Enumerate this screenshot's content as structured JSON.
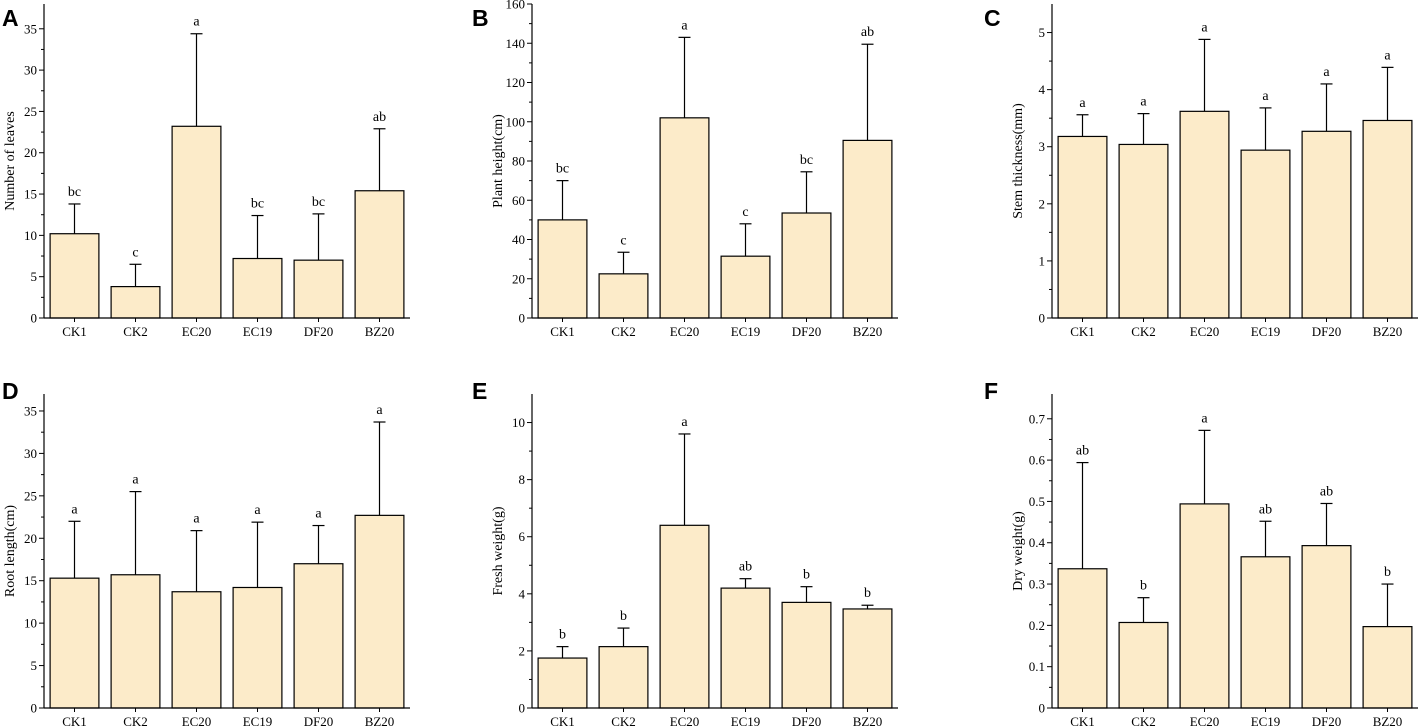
{
  "colors": {
    "bar_fill": "#fcebc9",
    "bar_stroke": "#000000",
    "axis": "#000000"
  },
  "chart_data": [
    {
      "panel": "A",
      "type": "bar",
      "categories": [
        "CK1",
        "CK2",
        "EC20",
        "EC19",
        "DF20",
        "BZ20"
      ],
      "values": [
        10.2,
        3.8,
        23.2,
        7.2,
        7.0,
        15.4
      ],
      "errors": [
        3.6,
        2.7,
        11.2,
        5.2,
        5.6,
        7.5
      ],
      "significance": [
        "bc",
        "c",
        "a",
        "bc",
        "bc",
        "ab"
      ],
      "ylabel": "Number of leaves",
      "ylim": [
        0,
        38
      ],
      "yticks": [
        0,
        5,
        10,
        15,
        20,
        25,
        30,
        35
      ]
    },
    {
      "panel": "B",
      "type": "bar",
      "categories": [
        "CK1",
        "CK2",
        "EC20",
        "EC19",
        "DF20",
        "BZ20"
      ],
      "values": [
        50,
        22.5,
        102,
        31.5,
        53.5,
        90.5
      ],
      "errors": [
        20,
        11,
        41,
        16.5,
        21,
        49
      ],
      "significance": [
        "bc",
        "c",
        "a",
        "c",
        "bc",
        "ab"
      ],
      "ylabel": "Plant height(cm)",
      "ylim": [
        0,
        160
      ],
      "yticks": [
        0,
        20,
        40,
        60,
        80,
        100,
        120,
        140,
        160
      ]
    },
    {
      "panel": "C",
      "type": "bar",
      "categories": [
        "CK1",
        "CK2",
        "EC20",
        "EC19",
        "DF20",
        "BZ20"
      ],
      "values": [
        3.18,
        3.04,
        3.62,
        2.94,
        3.27,
        3.46
      ],
      "errors": [
        0.38,
        0.54,
        1.26,
        0.74,
        0.83,
        0.93
      ],
      "significance": [
        "a",
        "a",
        "a",
        "a",
        "a",
        "a"
      ],
      "ylabel": "Stem thickness(mm)",
      "ylim": [
        0,
        5.5
      ],
      "yticks": [
        0,
        1,
        2,
        3,
        4,
        5
      ]
    },
    {
      "panel": "D",
      "type": "bar",
      "categories": [
        "CK1",
        "CK2",
        "EC20",
        "EC19",
        "DF20",
        "BZ20"
      ],
      "values": [
        15.3,
        15.7,
        13.7,
        14.2,
        17.0,
        22.7
      ],
      "errors": [
        6.7,
        9.8,
        7.2,
        7.7,
        4.5,
        11.0
      ],
      "significance": [
        "a",
        "a",
        "a",
        "a",
        "a",
        "a"
      ],
      "ylabel": "Root length(cm)",
      "ylim": [
        0,
        37
      ],
      "yticks": [
        0,
        5,
        10,
        15,
        20,
        25,
        30,
        35
      ]
    },
    {
      "panel": "E",
      "type": "bar",
      "categories": [
        "CK1",
        "CK2",
        "EC20",
        "EC19",
        "DF20",
        "BZ20"
      ],
      "values": [
        1.75,
        2.15,
        6.4,
        4.2,
        3.7,
        3.47
      ],
      "errors": [
        0.4,
        0.65,
        3.2,
        0.33,
        0.55,
        0.13
      ],
      "significance": [
        "b",
        "b",
        "a",
        "ab",
        "b",
        "b"
      ],
      "ylabel": "Fresh weight(g)",
      "ylim": [
        0,
        11
      ],
      "yticks": [
        0,
        2,
        4,
        6,
        8,
        10
      ]
    },
    {
      "panel": "F",
      "type": "bar",
      "categories": [
        "CK1",
        "CK2",
        "EC20",
        "EC19",
        "DF20",
        "BZ20"
      ],
      "values": [
        0.337,
        0.207,
        0.494,
        0.366,
        0.393,
        0.197
      ],
      "errors": [
        0.257,
        0.06,
        0.178,
        0.086,
        0.102,
        0.103
      ],
      "significance": [
        "ab",
        "b",
        "a",
        "ab",
        "ab",
        "b"
      ],
      "ylabel": "Dry weight(g)",
      "ylim": [
        0,
        0.76
      ],
      "yticks": [
        0,
        0.1,
        0.2,
        0.3,
        0.4,
        0.5,
        0.6,
        0.7
      ]
    }
  ]
}
